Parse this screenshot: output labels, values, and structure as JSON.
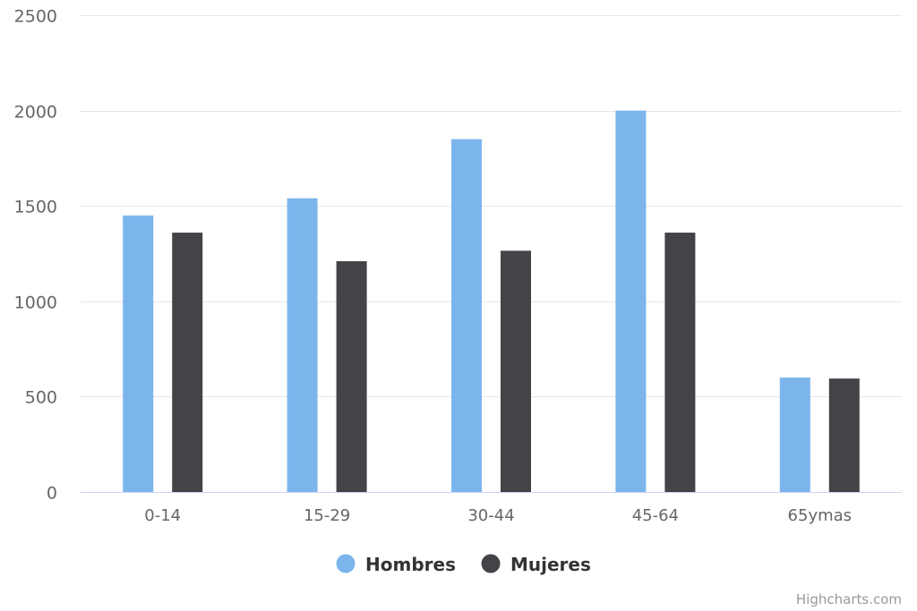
{
  "chart_data": {
    "type": "bar",
    "categories": [
      "0-14",
      "15-29",
      "30-44",
      "45-64",
      "65ymas"
    ],
    "series": [
      {
        "name": "Hombres",
        "color": "#7cb5ec",
        "values": [
          1450,
          1540,
          1850,
          2000,
          600
        ]
      },
      {
        "name": "Mujeres",
        "color": "#434348",
        "values": [
          1360,
          1210,
          1265,
          1360,
          595
        ]
      }
    ],
    "yticks": [
      0,
      500,
      1000,
      1500,
      2000,
      2500
    ],
    "ylim": [
      0,
      2500
    ],
    "grid": true,
    "legend_position": "bottom-center"
  },
  "credits": "Highcharts.com"
}
